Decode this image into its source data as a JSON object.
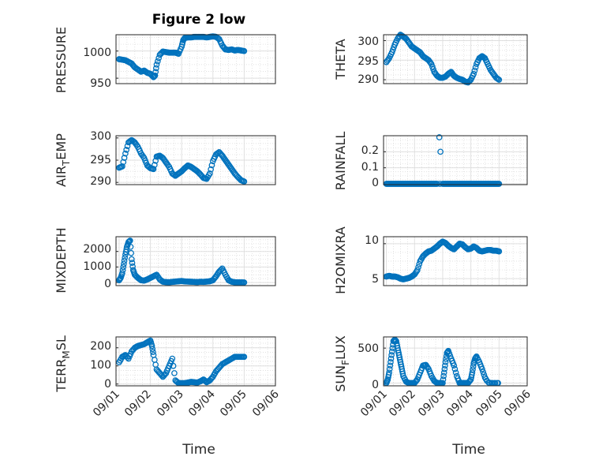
{
  "figure": {
    "title": "Figure 2 low",
    "marker_color": "#0072BD",
    "grid": true,
    "minor_grid": true
  },
  "chart_data": [
    {
      "type": "scatter",
      "id": "pressure",
      "ylabel": "PRESSURE",
      "xlabel": "",
      "title": "Figure 2 low",
      "xlim": [
        "09/01",
        "09/05"
      ],
      "ylim": [
        940,
        1030
      ],
      "yticks": [
        950,
        1000
      ],
      "xticks": [],
      "xtick_labels": [],
      "x": [
        1.0,
        1.1,
        1.2,
        1.3,
        1.4,
        1.5,
        1.6,
        1.7,
        1.8,
        1.9,
        2.0,
        2.1,
        2.15,
        2.2,
        2.3,
        2.4,
        2.5,
        2.6,
        2.7,
        2.8,
        2.9,
        3.0,
        3.05,
        3.1,
        3.2,
        3.3,
        3.4,
        3.5,
        3.6,
        3.7,
        3.8,
        3.9,
        4.0,
        4.1,
        4.2,
        4.3,
        4.4,
        4.5,
        4.6,
        4.7,
        4.8,
        4.9,
        5.0
      ],
      "y": [
        985,
        984,
        983,
        980,
        977,
        970,
        966,
        962,
        964,
        960,
        958,
        952,
        955,
        975,
        993,
        999,
        998,
        997,
        997,
        997,
        995,
        1008,
        1020,
        1024,
        1025,
        1025,
        1026,
        1026,
        1026,
        1026,
        1025,
        1026,
        1027,
        1026,
        1022,
        1010,
        1003,
        1002,
        1003,
        1001,
        1002,
        1001,
        1000
      ]
    },
    {
      "type": "scatter",
      "id": "theta",
      "ylabel": "THETA",
      "xlabel": "",
      "xlim": [
        "09/01",
        "09/05"
      ],
      "ylim": [
        289,
        301.5
      ],
      "yticks": [
        290,
        295,
        300
      ],
      "xticks": [],
      "xtick_labels": [],
      "x": [
        1.0,
        1.1,
        1.2,
        1.3,
        1.4,
        1.5,
        1.6,
        1.7,
        1.8,
        1.9,
        2.0,
        2.1,
        2.2,
        2.3,
        2.4,
        2.5,
        2.6,
        2.7,
        2.8,
        2.9,
        3.0,
        3.1,
        3.2,
        3.3,
        3.4,
        3.5,
        3.6,
        3.7,
        3.8,
        3.9,
        4.0,
        4.1,
        4.2,
        4.3,
        4.4,
        4.5,
        4.6,
        4.7,
        4.8,
        4.9,
        5.0
      ],
      "y": [
        294.5,
        295.5,
        297,
        299,
        300.5,
        301.5,
        301,
        300.5,
        299.5,
        298.5,
        298,
        297.5,
        297,
        296,
        295.5,
        295,
        294,
        292,
        291,
        290.5,
        290.5,
        290.8,
        291.5,
        292,
        291,
        290.5,
        290.2,
        290,
        289.5,
        289.3,
        290,
        291.5,
        294,
        295.5,
        296,
        295.5,
        294,
        292.5,
        291.5,
        290.5,
        290
      ]
    },
    {
      "type": "scatter",
      "id": "air_temp",
      "ylabel": "AIR_TEMP",
      "xlabel": "",
      "xlim": [
        "09/01",
        "09/05"
      ],
      "ylim": [
        289.5,
        300.5
      ],
      "yticks": [
        290,
        295,
        300
      ],
      "xticks": [],
      "xtick_labels": [],
      "x": [
        1.0,
        1.1,
        1.2,
        1.3,
        1.4,
        1.5,
        1.6,
        1.7,
        1.8,
        1.9,
        2.0,
        2.1,
        2.2,
        2.3,
        2.4,
        2.5,
        2.6,
        2.7,
        2.8,
        2.9,
        3.0,
        3.1,
        3.2,
        3.3,
        3.4,
        3.5,
        3.6,
        3.7,
        3.8,
        3.9,
        4.0,
        4.1,
        4.2,
        4.3,
        4.4,
        4.5,
        4.6,
        4.7,
        4.8,
        4.9,
        5.0
      ],
      "y": [
        293.3,
        293.6,
        296.5,
        299,
        299.5,
        299,
        298,
        296.5,
        295.5,
        293.8,
        293.2,
        293,
        295.8,
        296,
        295.5,
        294.5,
        293.5,
        292,
        291.5,
        292,
        292.5,
        293.2,
        293.8,
        293.5,
        293,
        292.5,
        291.8,
        291,
        290.8,
        292,
        294.8,
        296.3,
        296.8,
        296,
        295,
        294,
        293,
        292,
        291.2,
        290.5,
        290.2
      ]
    },
    {
      "type": "scatter",
      "id": "rainfall",
      "ylabel": "RAINFALL",
      "xlabel": "",
      "xlim": [
        "09/01",
        "09/05"
      ],
      "ylim": [
        -0.005,
        0.3
      ],
      "yticks": [
        0,
        0.1,
        0.2
      ],
      "xticks": [],
      "xtick_labels": [],
      "x": [
        1.0,
        1.1,
        1.2,
        1.3,
        1.4,
        1.5,
        1.6,
        1.7,
        1.8,
        1.9,
        2.0,
        2.1,
        2.2,
        2.3,
        2.4,
        2.5,
        2.6,
        2.7,
        2.8,
        2.9,
        3.0,
        3.1,
        3.2,
        3.3,
        3.4,
        3.5,
        3.6,
        3.7,
        3.8,
        3.9,
        4.0,
        4.1,
        4.2,
        4.3,
        4.4,
        4.5,
        4.6,
        4.7,
        4.8,
        4.9,
        5.0,
        2.88,
        2.92
      ],
      "y": [
        0,
        0,
        0,
        0,
        0,
        0,
        0,
        0,
        0,
        0,
        0,
        0,
        0,
        0,
        0,
        0,
        0,
        0,
        0,
        0,
        0,
        0,
        0,
        0,
        0,
        0,
        0,
        0,
        0,
        0,
        0,
        0,
        0,
        0,
        0,
        0,
        0,
        0,
        0,
        0,
        0,
        0.29,
        0.2
      ]
    },
    {
      "type": "scatter",
      "id": "mixdepth",
      "ylabel": "MIXDEPTH",
      "xlabel": "",
      "xlim": [
        "09/01",
        "09/05"
      ],
      "ylim": [
        -200,
        2950
      ],
      "yticks": [
        0,
        1000,
        2000
      ],
      "xticks": [],
      "xtick_labels": [],
      "x": [
        1.0,
        1.05,
        1.1,
        1.15,
        1.2,
        1.25,
        1.3,
        1.35,
        1.4,
        1.45,
        1.5,
        1.6,
        1.7,
        1.8,
        1.9,
        2.0,
        2.1,
        2.2,
        2.3,
        2.4,
        2.5,
        2.6,
        2.7,
        2.8,
        2.9,
        3.0,
        3.1,
        3.2,
        3.3,
        3.4,
        3.5,
        3.6,
        3.7,
        3.8,
        3.9,
        4.0,
        4.1,
        4.2,
        4.3,
        4.4,
        4.5,
        4.6,
        4.7,
        4.8,
        4.9,
        5.0
      ],
      "y": [
        150,
        300,
        600,
        1200,
        1800,
        2300,
        2600,
        2700,
        1500,
        800,
        500,
        300,
        150,
        120,
        200,
        300,
        400,
        500,
        200,
        50,
        30,
        20,
        40,
        60,
        80,
        100,
        70,
        60,
        50,
        40,
        30,
        50,
        40,
        60,
        80,
        150,
        400,
        700,
        900,
        500,
        150,
        50,
        20,
        10,
        10,
        5
      ]
    },
    {
      "type": "scatter",
      "id": "h2omixra",
      "ylabel": "H2OMIXRA",
      "xlabel": "",
      "xlim": [
        "09/01",
        "09/05"
      ],
      "ylim": [
        4,
        11
      ],
      "yticks": [
        5,
        10
      ],
      "xticks": [],
      "xtick_labels": [],
      "x": [
        1.0,
        1.1,
        1.2,
        1.3,
        1.4,
        1.5,
        1.6,
        1.7,
        1.8,
        1.9,
        2.0,
        2.1,
        2.2,
        2.3,
        2.4,
        2.5,
        2.6,
        2.7,
        2.8,
        2.9,
        3.0,
        3.1,
        3.2,
        3.3,
        3.4,
        3.5,
        3.6,
        3.7,
        3.8,
        3.9,
        4.0,
        4.1,
        4.2,
        4.3,
        4.4,
        4.5,
        4.6,
        4.7,
        4.8,
        4.9,
        5.0
      ],
      "y": [
        5.3,
        5.4,
        5.3,
        5.3,
        5.2,
        5.0,
        4.9,
        5.0,
        5.1,
        5.3,
        5.6,
        6.2,
        7.5,
        8.2,
        8.6,
        8.9,
        9.0,
        9.3,
        9.6,
        10.0,
        10.3,
        10.1,
        9.7,
        9.4,
        9.2,
        9.6,
        10.0,
        9.9,
        9.5,
        9.2,
        9.3,
        9.6,
        9.4,
        9.0,
        8.9,
        9.0,
        9.1,
        9.1,
        9.0,
        9.0,
        8.9
      ]
    },
    {
      "type": "scatter",
      "id": "terr_msl",
      "ylabel": "TERR_MSL",
      "xlabel": "Time",
      "xlim": [
        "09/01",
        "09/06"
      ],
      "ylim": [
        -10,
        260
      ],
      "yticks": [
        0,
        100,
        200
      ],
      "xticks": [
        1,
        2,
        3,
        4,
        5,
        6
      ],
      "xtick_labels": [
        "09/01",
        "09/02",
        "09/03",
        "09/04",
        "09/05",
        "09/06"
      ],
      "x": [
        1.0,
        1.1,
        1.2,
        1.3,
        1.4,
        1.5,
        1.6,
        1.7,
        1.8,
        1.9,
        2.0,
        2.05,
        2.1,
        2.2,
        2.3,
        2.4,
        2.5,
        2.6,
        2.7,
        2.8,
        2.9,
        3.0,
        3.1,
        3.2,
        3.3,
        3.4,
        3.5,
        3.6,
        3.7,
        3.8,
        3.9,
        4.0,
        4.1,
        4.2,
        4.3,
        4.4,
        4.5,
        4.6,
        4.7,
        4.8,
        4.9,
        5.0
      ],
      "y": [
        120,
        150,
        160,
        140,
        180,
        200,
        210,
        215,
        220,
        230,
        240,
        210,
        160,
        80,
        60,
        40,
        60,
        100,
        140,
        20,
        5,
        5,
        5,
        8,
        12,
        10,
        8,
        15,
        25,
        10,
        20,
        40,
        70,
        90,
        110,
        120,
        130,
        140,
        150,
        150,
        150,
        150
      ]
    },
    {
      "type": "scatter",
      "id": "sun_flux",
      "ylabel": "SUN_FLUX",
      "xlabel": "Time",
      "xlim": [
        "09/01",
        "09/06"
      ],
      "ylim": [
        -40,
        660
      ],
      "yticks": [
        0,
        500
      ],
      "xticks": [
        1,
        2,
        3,
        4,
        5,
        6
      ],
      "xtick_labels": [
        "09/01",
        "09/02",
        "09/03",
        "09/04",
        "09/05",
        "09/06"
      ],
      "x": [
        1.0,
        1.05,
        1.1,
        1.15,
        1.2,
        1.25,
        1.3,
        1.35,
        1.4,
        1.45,
        1.5,
        1.55,
        1.6,
        1.7,
        1.8,
        1.9,
        2.0,
        2.1,
        2.2,
        2.3,
        2.4,
        2.5,
        2.6,
        2.7,
        2.8,
        2.9,
        3.0,
        3.05,
        3.1,
        3.15,
        3.2,
        3.3,
        3.4,
        3.5,
        3.6,
        3.7,
        3.8,
        3.9,
        4.0,
        4.05,
        4.1,
        4.15,
        4.2,
        4.3,
        4.4,
        4.5,
        4.6,
        4.7,
        4.8,
        4.9,
        5.0
      ],
      "y": [
        0,
        50,
        150,
        300,
        450,
        600,
        620,
        600,
        500,
        400,
        300,
        200,
        100,
        20,
        0,
        0,
        0,
        50,
        150,
        250,
        260,
        200,
        100,
        30,
        0,
        0,
        0,
        150,
        300,
        430,
        460,
        350,
        250,
        100,
        0,
        0,
        0,
        0,
        50,
        150,
        280,
        350,
        380,
        300,
        200,
        80,
        10,
        0,
        0,
        0,
        0
      ]
    }
  ],
  "axes_text": {
    "pressure": {
      "ylabel": "PRESSURE",
      "yticks": [
        "950",
        "1000"
      ]
    },
    "theta": {
      "ylabel": "THETA",
      "yticks": [
        "290",
        "295",
        "300"
      ]
    },
    "air_temp": {
      "ylabel_main": "AIR",
      "ylabel_sub": "T",
      "ylabel_rest": "EMP",
      "yticks": [
        "290",
        "295",
        "300"
      ]
    },
    "rainfall": {
      "ylabel": "RAINFALL",
      "yticks": [
        "0",
        "0.1",
        "0.2"
      ]
    },
    "mixdepth": {
      "ylabel": "MIXDEPTH",
      "yticks": [
        "0",
        "1000",
        "2000"
      ]
    },
    "h2omixra": {
      "ylabel": "H2OMIXRA",
      "yticks": [
        "5",
        "10"
      ]
    },
    "terr_msl": {
      "ylabel_main": "TERR",
      "ylabel_sub": "M",
      "ylabel_rest": "SL",
      "yticks": [
        "0",
        "100",
        "200"
      ],
      "xlabel": "Time",
      "xticks": [
        "09/01",
        "09/02",
        "09/03",
        "09/04",
        "09/05",
        "09/06"
      ]
    },
    "sun_flux": {
      "ylabel_main": "SUN",
      "ylabel_sub": "F",
      "ylabel_rest": "LUX",
      "yticks": [
        "0",
        "500"
      ],
      "xlabel": "Time",
      "xticks": [
        "09/01",
        "09/02",
        "09/03",
        "09/04",
        "09/05",
        "09/06"
      ]
    }
  }
}
